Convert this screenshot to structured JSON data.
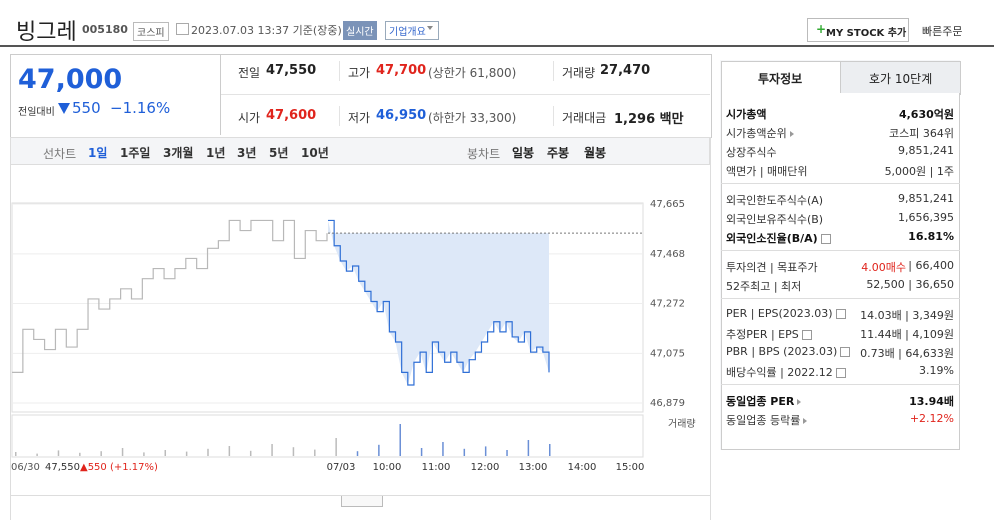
{
  "header": {
    "name": "빙그레",
    "code": "005180",
    "market": "코스피",
    "datetime": "2023.07.03 13:37 기준(장중)",
    "realtime": "실시간",
    "overview": "기업개요",
    "mystock": "MY STOCK 추가",
    "quick_order": "빠른주문"
  },
  "price": {
    "current": "47,000",
    "change_label": "전일대비",
    "change": "550",
    "rate": "−1.16%"
  },
  "summary": [
    [
      {
        "label": "전일",
        "value": "47,550"
      },
      {
        "label": "고가",
        "value": "47,700",
        "extra": "(상한가 61,800)",
        "color": "#e0241c"
      },
      {
        "label": "거래량",
        "value": "27,470"
      }
    ],
    [
      {
        "label": "시가",
        "value": "47,600",
        "color": "#e0241c"
      },
      {
        "label": "저가",
        "value": "46,950",
        "extra": "(하한가 33,300)",
        "color": "#1f5fd8"
      },
      {
        "label": "거래대금",
        "value": "1,296 백만"
      }
    ]
  ],
  "tabs": {
    "line_label": "선차트",
    "line_periods": [
      "1일",
      "1주일",
      "3개월",
      "1년",
      "3년",
      "5년",
      "10년"
    ],
    "candle_label": "봉차트",
    "candle_periods": [
      "일봉",
      "주봉",
      "월봉"
    ]
  },
  "chart_data": {
    "type": "line",
    "ylim": [
      46879,
      47665
    ],
    "yticks": [
      {
        "value": 47665,
        "label": "47,665"
      },
      {
        "value": 47468,
        "label": "47,468"
      },
      {
        "value": 47272,
        "label": "47,272"
      },
      {
        "value": 47075,
        "label": "47,075"
      },
      {
        "value": 46879,
        "label": "46,879"
      }
    ],
    "baseline": 47550,
    "series": [
      {
        "color": "#b8b8b8",
        "values": [
          47000,
          47170,
          47130,
          47090,
          47170,
          47100,
          47170,
          47290,
          47250,
          47290,
          47330,
          47290,
          47370,
          47410,
          47370,
          47410,
          47450,
          47410,
          47490,
          47520,
          47600,
          47560,
          47600,
          47600,
          47520,
          47600,
          47450,
          47560,
          47520,
          47550
        ]
      },
      {
        "color": "#2f6fd6",
        "fill": "#dde8f8",
        "values": [
          47600,
          47500,
          47440,
          47400,
          47420,
          47360,
          47320,
          47280,
          47240,
          47280,
          47160,
          47120,
          47000,
          46950,
          47040,
          47080,
          47000,
          47120,
          47080,
          47040,
          47080,
          47040,
          47000,
          47050,
          47080,
          47120,
          47160,
          47200,
          47160,
          47200,
          47140,
          47120,
          47160,
          47080,
          47100,
          47080,
          47000
        ]
      }
    ],
    "volume_label": "거래량",
    "volume": {
      "vlim": [
        0,
        100
      ],
      "values": [
        10,
        6,
        14,
        8,
        12,
        20,
        9,
        15,
        11,
        18,
        25,
        13,
        30,
        22,
        16,
        45,
        12,
        28,
        80,
        20,
        35,
        18,
        24,
        15,
        40,
        30
      ]
    },
    "prev_day": {
      "date": "06/30",
      "close": "47,550",
      "change": "▲550 (+1.17%)"
    },
    "x_labels": [
      "07/03",
      "10:00",
      "11:00",
      "12:00",
      "13:00",
      "14:00",
      "15:00"
    ]
  },
  "info_tabs": [
    "투자정보",
    "호가 10단계"
  ],
  "info_groups": [
    [
      {
        "label": "시가총액",
        "value": "4,630억원",
        "bold": true
      },
      {
        "label": "시가총액순위",
        "value": "코스피 364위",
        "arrow": true
      },
      {
        "label": "상장주식수",
        "value": "9,851,241"
      },
      {
        "label": "액면가 | 매매단위",
        "value": "5,000원 | 1주"
      }
    ],
    [
      {
        "label": "외국인한도주식수(A)",
        "value": "9,851,241"
      },
      {
        "label": "외국인보유주식수(B)",
        "value": "1,656,395"
      },
      {
        "label": "외국인소진율(B/A)",
        "value": "16.81%",
        "bold": true,
        "help": true
      }
    ],
    [
      {
        "label": "투자의견 | 목표주가",
        "value": "4.00매수",
        "value2": "| 66,400",
        "color": "#e0241c"
      },
      {
        "label": "52주최고 | 최저",
        "value": "52,500 | 36,650"
      }
    ],
    [
      {
        "label": "PER | EPS(2023.03)",
        "value": "14.03배 | 3,349원",
        "help": true
      },
      {
        "label": "추정PER | EPS",
        "value": "11.44배 | 4,109원",
        "help": true
      },
      {
        "label": "PBR | BPS (2023.03)",
        "value": "0.73배 | 64,633원",
        "help": true
      },
      {
        "label": "배당수익률 | 2022.12",
        "value": "3.19%",
        "help": true
      }
    ],
    [
      {
        "label": "동일업종 PER",
        "value": "13.94배",
        "bold": true,
        "arrow": true
      },
      {
        "label": "동일업종 등락률",
        "value": "+2.12%",
        "color": "#e0241c",
        "arrow": true
      }
    ]
  ]
}
